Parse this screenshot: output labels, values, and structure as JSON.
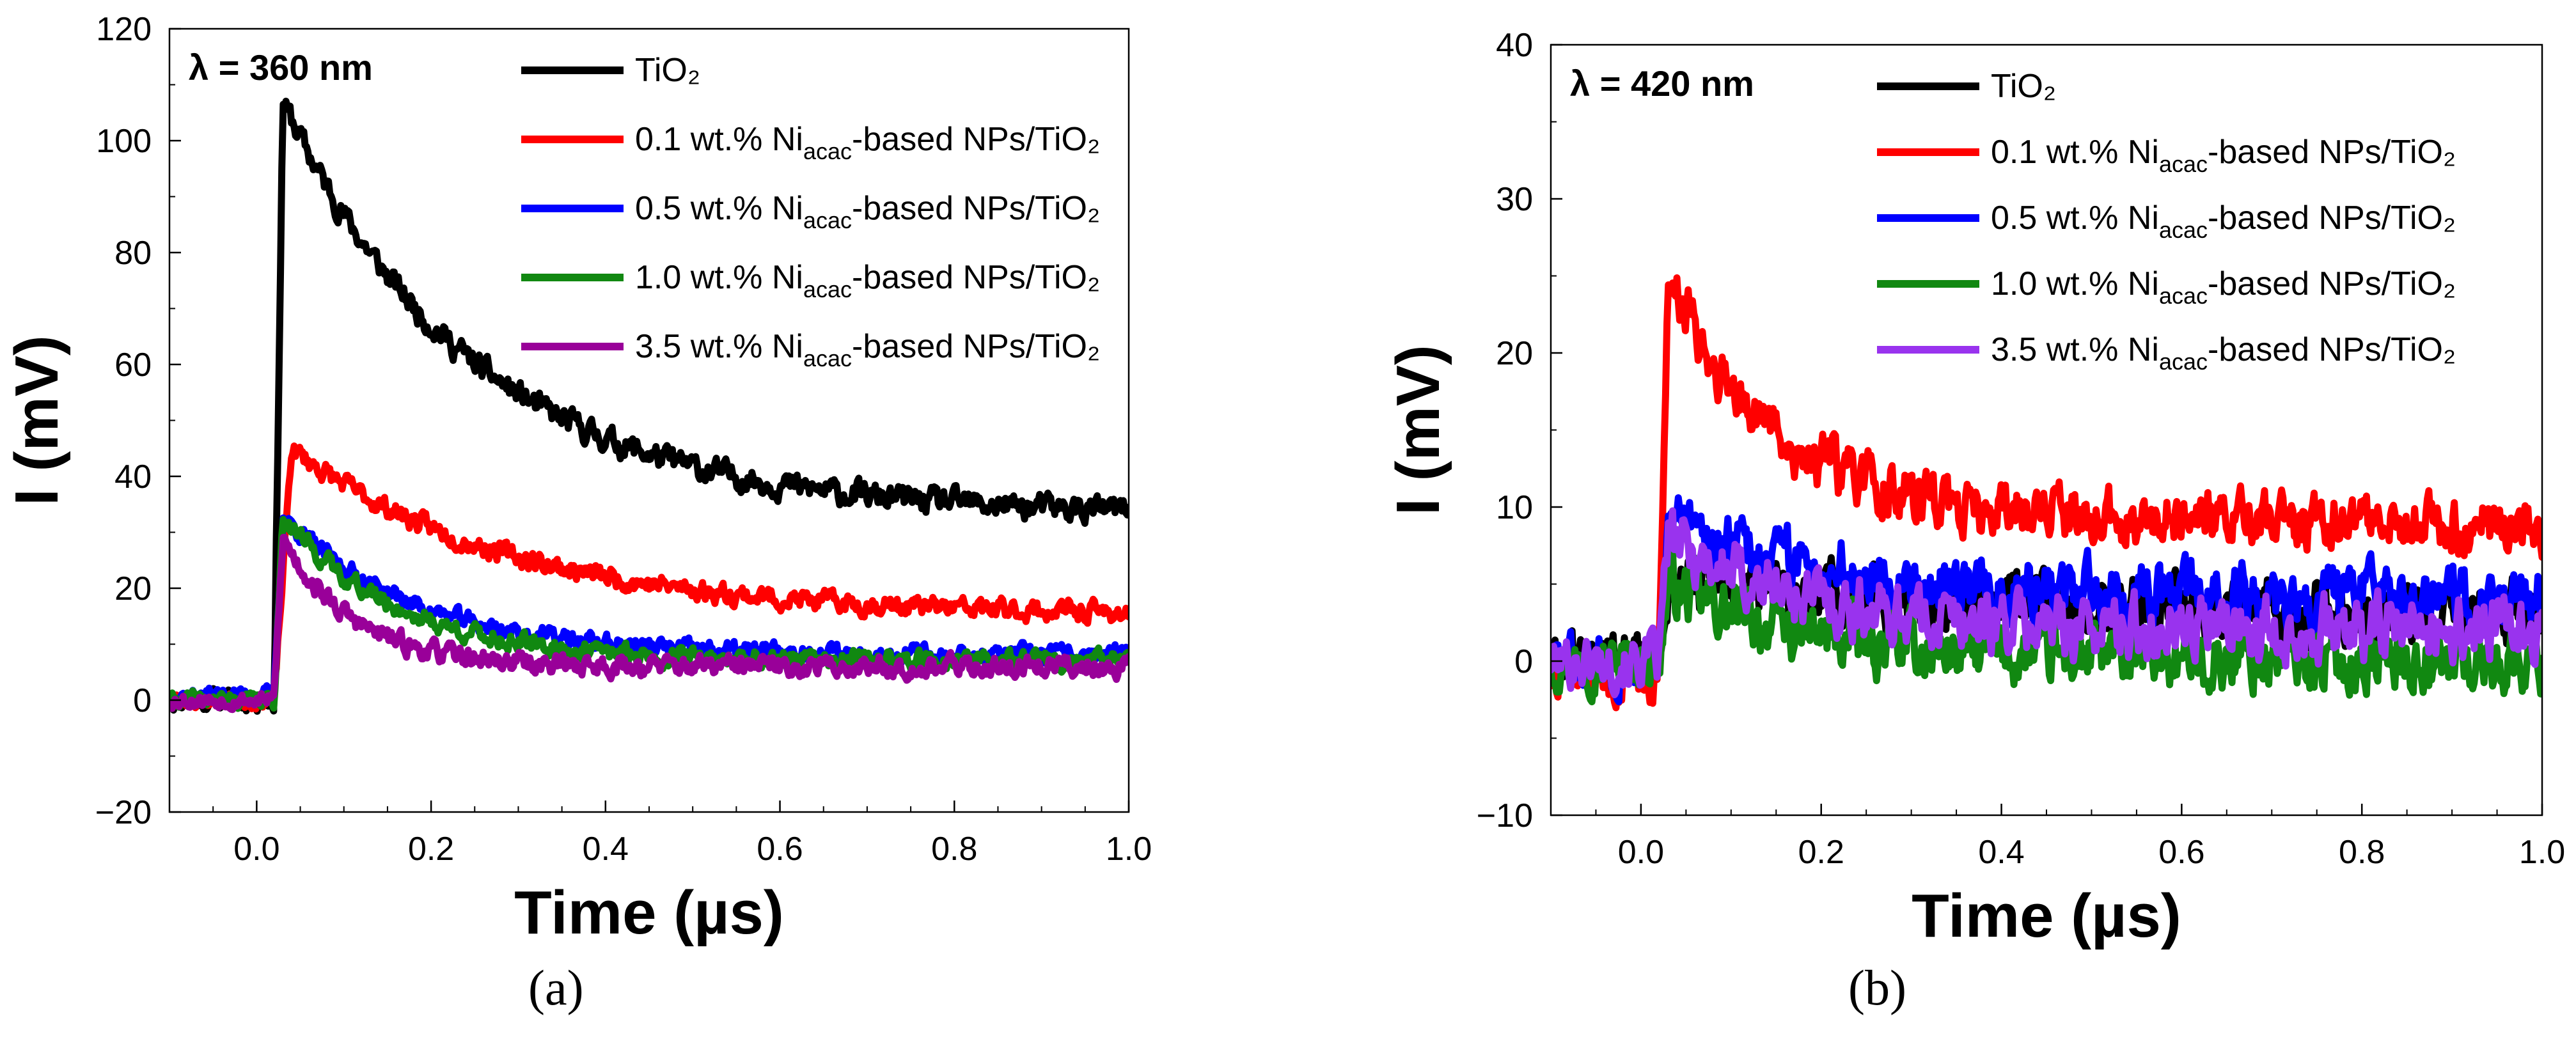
{
  "chart_data": [
    {
      "id": "a",
      "type": "line",
      "panel_label": "(a)",
      "wavelength_label": "λ = 360 nm",
      "xlabel": "Time (µs)",
      "ylabel": "I (mV)",
      "xlim": [
        -0.1,
        1.0
      ],
      "ylim": [
        -20,
        120
      ],
      "x_ticks": [
        0.0,
        0.2,
        0.4,
        0.6,
        0.8,
        1.0
      ],
      "x_tick_labels": [
        "0.0",
        "0.2",
        "0.4",
        "0.6",
        "0.8",
        "1.0"
      ],
      "y_ticks": [
        -20,
        0,
        20,
        40,
        60,
        80,
        100,
        120
      ],
      "y_tick_labels": [
        "−20",
        "0",
        "20",
        "40",
        "60",
        "80",
        "100",
        "120"
      ],
      "legend_position": "top-right",
      "series": [
        {
          "name": "TiO₂",
          "color": "#000000",
          "model": {
            "base": 0,
            "peak": 107,
            "pulse_x": 0.02,
            "peak_x": 0.03,
            "end": 33,
            "tau": 0.22,
            "noise_pre": 2.0,
            "noise_post": 2.5,
            "seed": 11
          }
        },
        {
          "name": "0.1 wt.% Ni_acac-based NPs/TiO₂",
          "color": "#ff0000",
          "model": {
            "base": 0,
            "peak": 45,
            "pulse_x": 0.02,
            "peak_x": 0.04,
            "end": 15,
            "tau": 0.25,
            "noise_pre": 1.5,
            "noise_post": 2.0,
            "seed": 23
          }
        },
        {
          "name": "0.5 wt.% Ni_acac-based NPs/TiO₂",
          "color": "#0000ff",
          "model": {
            "base": 1,
            "peak": 33,
            "pulse_x": 0.02,
            "peak_x": 0.03,
            "end": 8,
            "tau": 0.15,
            "noise_pre": 1.5,
            "noise_post": 1.8,
            "seed": 37
          }
        },
        {
          "name": "1.0 wt.% Ni_acac-based NPs/TiO₂",
          "color": "#118811",
          "model": {
            "base": 0,
            "peak": 33,
            "pulse_x": 0.02,
            "peak_x": 0.03,
            "end": 7,
            "tau": 0.13,
            "noise_pre": 1.5,
            "noise_post": 1.8,
            "seed": 41
          }
        },
        {
          "name": "3.5 wt.% Ni_acac-based NPs/TiO₂",
          "color": "#990099",
          "model": {
            "base": 0,
            "peak": 29,
            "pulse_x": 0.02,
            "peak_x": 0.03,
            "end": 6,
            "tau": 0.08,
            "noise_pre": 1.5,
            "noise_post": 2.0,
            "seed": 53
          }
        }
      ]
    },
    {
      "id": "b",
      "type": "line",
      "panel_label": "(b)",
      "wavelength_label": "λ = 420 nm",
      "xlabel": "Time (µs)",
      "ylabel": "I (mV)",
      "xlim": [
        -0.1,
        1.0
      ],
      "ylim": [
        -10,
        40
      ],
      "x_ticks": [
        0.0,
        0.2,
        0.4,
        0.6,
        0.8,
        1.0
      ],
      "x_tick_labels": [
        "0.0",
        "0.2",
        "0.4",
        "0.6",
        "0.8",
        "1.0"
      ],
      "y_ticks": [
        -10,
        0,
        10,
        20,
        30,
        40
      ],
      "y_tick_labels": [
        "−10",
        "0",
        "10",
        "20",
        "30",
        "40"
      ],
      "legend_position": "top-right",
      "series": [
        {
          "name": "TiO₂",
          "color": "#000000",
          "model": {
            "base": 0,
            "peak": 5,
            "pulse_x": 0.02,
            "peak_x": 0.03,
            "end": 3,
            "tau": 0.3,
            "noise_pre": 1.8,
            "noise_post": 2.2,
            "seed": 61
          }
        },
        {
          "name": "0.1 wt.% Ni_acac-based NPs/TiO₂",
          "color": "#ff0000",
          "model": {
            "base": -1,
            "peak": 25,
            "pulse_x": 0.02,
            "peak_x": 0.03,
            "end": 9,
            "tau": 0.12,
            "noise_pre": 1.8,
            "noise_post": 2.0,
            "seed": 73
          }
        },
        {
          "name": "0.5 wt.% Ni_acac-based NPs/TiO₂",
          "color": "#0000ff",
          "model": {
            "base": 0,
            "peak": 9,
            "pulse_x": 0.02,
            "peak_x": 0.03,
            "end": 4,
            "tau": 0.2,
            "noise_pre": 1.8,
            "noise_post": 2.2,
            "seed": 83
          }
        },
        {
          "name": "1.0 wt.% Ni_acac-based NPs/TiO₂",
          "color": "#118811",
          "model": {
            "base": 0,
            "peak": 5,
            "pulse_x": 0.02,
            "peak_x": 0.03,
            "end": 0,
            "tau": 0.15,
            "noise_pre": 1.8,
            "noise_post": 2.2,
            "seed": 97
          }
        },
        {
          "name": "3.5 wt.% Ni_acac-based NPs/TiO₂",
          "color": "#9933ee",
          "model": {
            "base": 0,
            "peak": 8,
            "pulse_x": 0.02,
            "peak_x": 0.03,
            "end": 2,
            "tau": 0.15,
            "noise_pre": 1.8,
            "noise_post": 2.2,
            "seed": 101
          }
        }
      ]
    }
  ]
}
